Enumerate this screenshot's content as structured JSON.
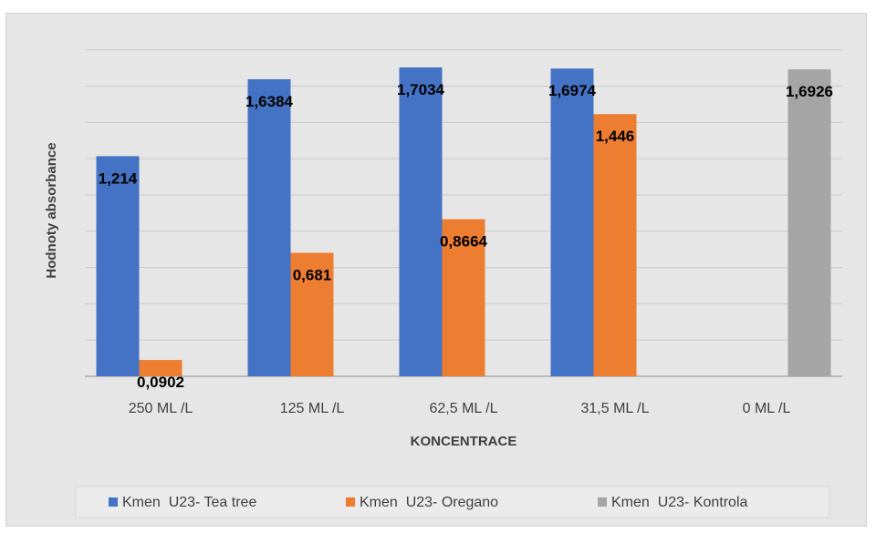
{
  "chart_data": {
    "type": "bar",
    "title": "",
    "xlabel": "KONCENTRACE",
    "ylabel": "Hodnoty absorbance",
    "categories": [
      "250 ML /L",
      "125 ML /L",
      "62,5 ML /L",
      "31,5 ML /L",
      "0 ML /L"
    ],
    "series": [
      {
        "name": "Kmen  U23- Tea tree",
        "color": "#4472c4",
        "values": [
          1.214,
          1.6384,
          1.7034,
          1.6974,
          null
        ],
        "labels": [
          "1,214",
          "1,6384",
          "1,7034",
          "1,6974",
          ""
        ]
      },
      {
        "name": "Kmen  U23- Oregano",
        "color": "#ed7d31",
        "values": [
          0.0902,
          0.681,
          0.8664,
          1.446,
          null
        ],
        "labels": [
          "0,0902",
          "0,681",
          "0,8664",
          "1,446",
          ""
        ]
      },
      {
        "name": "Kmen  U23- Kontrola",
        "color": "#a5a5a5",
        "values": [
          null,
          null,
          null,
          null,
          1.6926
        ],
        "labels": [
          "",
          "",
          "",
          "",
          "1,6926"
        ]
      }
    ],
    "ylim": [
      0,
      2.0
    ],
    "gridlines": true,
    "y_tick_labels_visible": false,
    "legend_position": "bottom",
    "background": "#e7e6e6"
  }
}
